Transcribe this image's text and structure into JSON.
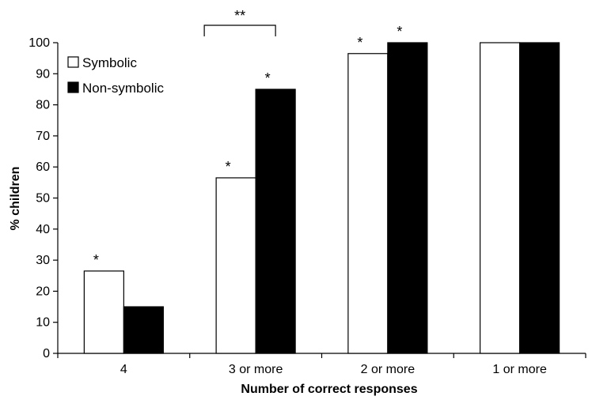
{
  "chart_data": {
    "type": "bar",
    "xlabel": "Number of correct responses",
    "ylabel": "% children",
    "ylim": [
      0,
      100
    ],
    "yticks": [
      0,
      10,
      20,
      30,
      40,
      50,
      60,
      70,
      80,
      90,
      100
    ],
    "categories": [
      "4",
      "3 or more",
      "2 or more",
      "1 or more"
    ],
    "series": [
      {
        "name": "Symbolic",
        "color": "#ffffff",
        "values": [
          26.5,
          56.5,
          96.5,
          100
        ]
      },
      {
        "name": "Non-symbolic",
        "color": "#000000",
        "values": [
          15,
          85,
          100,
          100
        ]
      }
    ],
    "legend_position": "top-left",
    "grid": false,
    "significance": [
      {
        "category": 0,
        "series": 0,
        "label": "*"
      },
      {
        "category": 1,
        "series": 0,
        "label": "*"
      },
      {
        "category": 1,
        "series": 1,
        "label": "*"
      },
      {
        "category": 2,
        "series": 0,
        "label": "*"
      },
      {
        "category": 2,
        "series": 1,
        "label": "*"
      }
    ],
    "bracket": {
      "category": 1,
      "label": "**"
    }
  }
}
